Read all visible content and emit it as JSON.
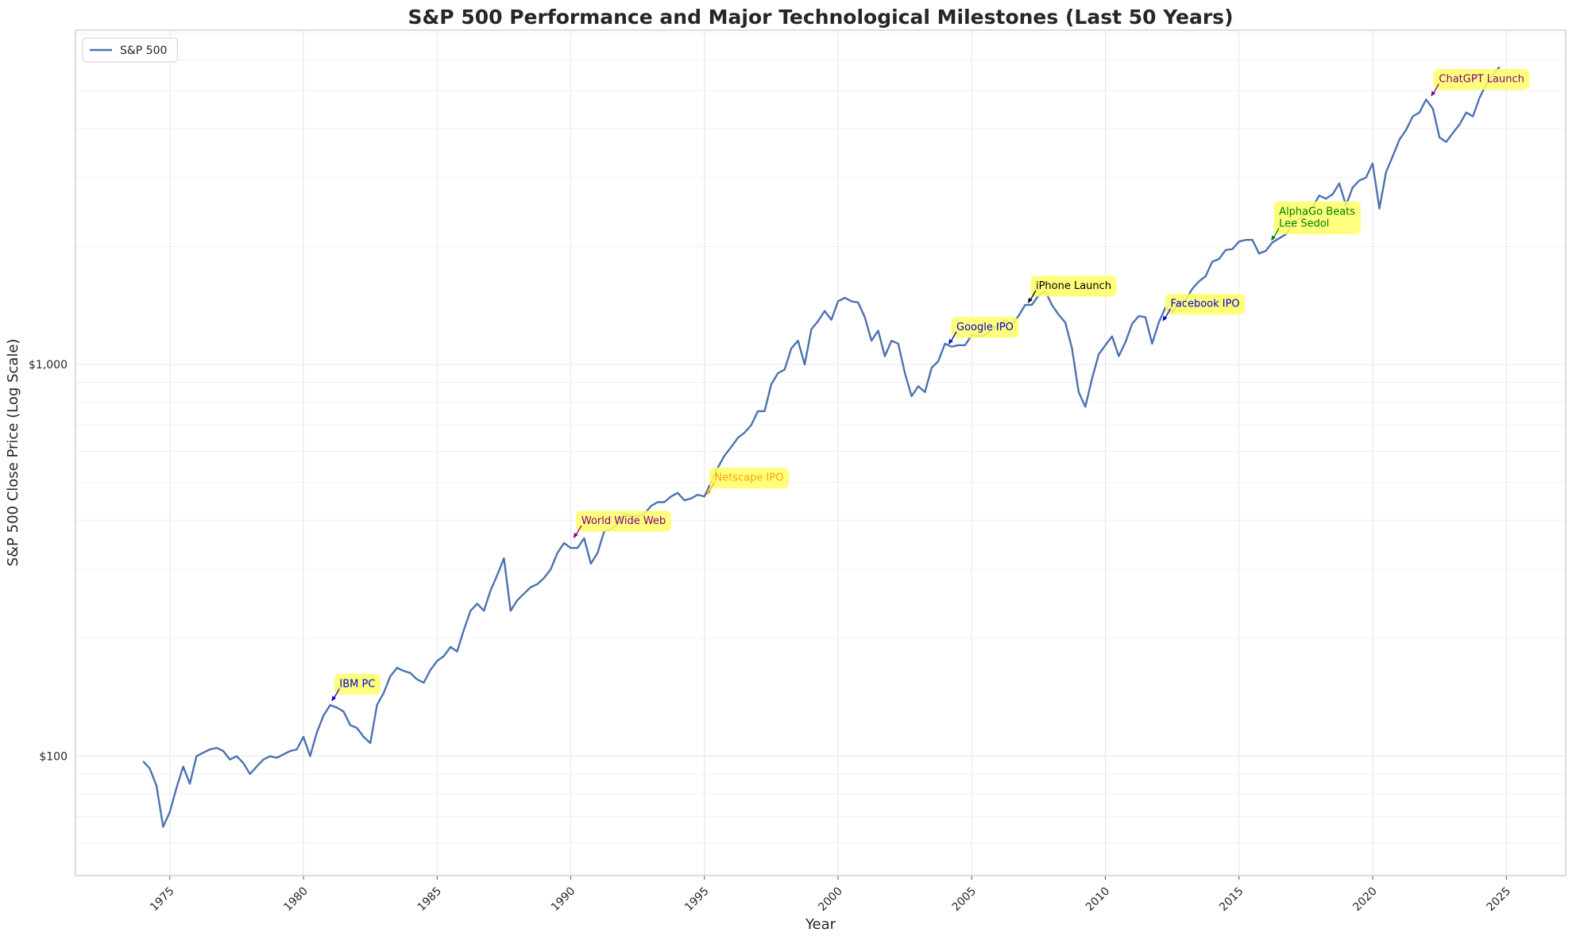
{
  "chart_data": {
    "type": "line",
    "title": "S&P 500 Performance and Major Technological Milestones (Last 50 Years)",
    "xlabel": "Year",
    "ylabel": "S&P 500 Close Price (Log Scale)",
    "log_y": true,
    "grid": true,
    "legend": "upper left",
    "xlim": [
      1971.47,
      2027.22
    ],
    "xticks": [
      1975,
      1980,
      1985,
      1990,
      1995,
      2000,
      2005,
      2010,
      2015,
      2020,
      2025
    ],
    "ylim": [
      49.5,
      7140
    ],
    "yticks": [
      {
        "value": 100,
        "label": "$100"
      },
      {
        "value": 1000,
        "label": "$1,000"
      }
    ],
    "y_minor_ticks": [
      50,
      60,
      70,
      80,
      90,
      200,
      300,
      400,
      500,
      600,
      700,
      800,
      900,
      2000,
      3000,
      4000,
      5000,
      6000,
      7000
    ],
    "x": [
      1974.0,
      1974.25,
      1974.5,
      1974.75,
      1975.0,
      1975.25,
      1975.5,
      1975.75,
      1976.0,
      1976.25,
      1976.5,
      1976.75,
      1977.0,
      1977.25,
      1977.5,
      1977.75,
      1978.0,
      1978.25,
      1978.5,
      1978.75,
      1979.0,
      1979.25,
      1979.5,
      1979.75,
      1980.0,
      1980.25,
      1980.5,
      1980.75,
      1981.0,
      1981.25,
      1981.5,
      1981.75,
      1982.0,
      1982.25,
      1982.5,
      1982.75,
      1983.0,
      1983.25,
      1983.5,
      1983.75,
      1984.0,
      1984.25,
      1984.5,
      1984.75,
      1985.0,
      1985.25,
      1985.5,
      1985.75,
      1986.0,
      1986.25,
      1986.5,
      1986.75,
      1987.0,
      1987.25,
      1987.5,
      1987.75,
      1988.0,
      1988.25,
      1988.5,
      1988.75,
      1989.0,
      1989.25,
      1989.5,
      1989.75,
      1990.0,
      1990.25,
      1990.5,
      1990.75,
      1991.0,
      1991.25,
      1991.5,
      1991.75,
      1992.0,
      1992.25,
      1992.5,
      1992.75,
      1993.0,
      1993.25,
      1993.5,
      1993.75,
      1994.0,
      1994.25,
      1994.5,
      1994.75,
      1995.0,
      1995.25,
      1995.5,
      1995.75,
      1996.0,
      1996.25,
      1996.5,
      1996.75,
      1997.0,
      1997.25,
      1997.5,
      1997.75,
      1998.0,
      1998.25,
      1998.5,
      1998.75,
      1999.0,
      1999.25,
      1999.5,
      1999.75,
      2000.0,
      2000.25,
      2000.5,
      2000.75,
      2001.0,
      2001.25,
      2001.5,
      2001.75,
      2002.0,
      2002.25,
      2002.5,
      2002.75,
      2003.0,
      2003.25,
      2003.5,
      2003.75,
      2004.0,
      2004.25,
      2004.5,
      2004.75,
      2005.0,
      2005.25,
      2005.5,
      2005.75,
      2006.0,
      2006.25,
      2006.5,
      2006.75,
      2007.0,
      2007.25,
      2007.5,
      2007.75,
      2008.0,
      2008.25,
      2008.5,
      2008.75,
      2009.0,
      2009.25,
      2009.5,
      2009.75,
      2010.0,
      2010.25,
      2010.5,
      2010.75,
      2011.0,
      2011.25,
      2011.5,
      2011.75,
      2012.0,
      2012.25,
      2012.5,
      2012.75,
      2013.0,
      2013.25,
      2013.5,
      2013.75,
      2014.0,
      2014.25,
      2014.5,
      2014.75,
      2015.0,
      2015.25,
      2015.5,
      2015.75,
      2016.0,
      2016.25,
      2016.5,
      2016.75,
      2017.0,
      2017.25,
      2017.5,
      2017.75,
      2018.0,
      2018.25,
      2018.5,
      2018.75,
      2019.0,
      2019.25,
      2019.5,
      2019.75,
      2020.0,
      2020.25,
      2020.5,
      2020.75,
      2021.0,
      2021.25,
      2021.5,
      2021.75,
      2022.0,
      2022.25,
      2022.5,
      2022.75,
      2023.0,
      2023.25,
      2023.5,
      2023.75,
      2024.0,
      2024.25,
      2024.5,
      2024.75
    ],
    "series": [
      {
        "name": "S&P 500",
        "color": "#4c72b0",
        "values": [
          97,
          93,
          84,
          66,
          72,
          83,
          94,
          85,
          100,
          102,
          104,
          105,
          103,
          98,
          100,
          96,
          90,
          94,
          98,
          100,
          99,
          101,
          103,
          104,
          112,
          100,
          115,
          127,
          135,
          133,
          130,
          120,
          118,
          112,
          108,
          135,
          145,
          160,
          168,
          165,
          163,
          157,
          154,
          166,
          175,
          180,
          190,
          185,
          210,
          235,
          245,
          235,
          265,
          290,
          320,
          235,
          250,
          260,
          270,
          275,
          285,
          300,
          330,
          350,
          340,
          340,
          360,
          310,
          330,
          375,
          380,
          390,
          415,
          410,
          410,
          415,
          435,
          445,
          445,
          460,
          470,
          450,
          455,
          465,
          460,
          500,
          545,
          585,
          615,
          650,
          670,
          700,
          760,
          760,
          890,
          950,
          970,
          1100,
          1150,
          1000,
          1230,
          1290,
          1370,
          1300,
          1450,
          1480,
          1450,
          1440,
          1320,
          1150,
          1220,
          1050,
          1150,
          1130,
          950,
          830,
          880,
          850,
          980,
          1020,
          1130,
          1110,
          1120,
          1120,
          1190,
          1180,
          1190,
          1230,
          1260,
          1300,
          1270,
          1330,
          1420,
          1420,
          1500,
          1540,
          1420,
          1340,
          1280,
          1100,
          850,
          780,
          920,
          1060,
          1120,
          1180,
          1050,
          1140,
          1270,
          1330,
          1320,
          1130,
          1280,
          1400,
          1360,
          1440,
          1460,
          1560,
          1630,
          1680,
          1830,
          1860,
          1960,
          1970,
          2060,
          2080,
          2080,
          1920,
          1950,
          2050,
          2100,
          2150,
          2270,
          2360,
          2420,
          2520,
          2700,
          2650,
          2720,
          2900,
          2550,
          2830,
          2950,
          3000,
          3260,
          2500,
          3100,
          3400,
          3750,
          3970,
          4300,
          4400,
          4750,
          4500,
          3800,
          3700,
          3900,
          4100,
          4400,
          4300,
          4800,
          5200,
          5500,
          5750
        ]
      }
    ],
    "annotations": [
      {
        "lines": [
          "IBM PC"
        ],
        "x": 1981.05,
        "y": 138,
        "color": "#0000cc"
      },
      {
        "lines": [
          "World Wide Web"
        ],
        "x": 1990.1,
        "y": 360,
        "color": "#800080"
      },
      {
        "lines": [
          "Netscape IPO"
        ],
        "x": 1995.08,
        "y": 464,
        "color": "#ffa500"
      },
      {
        "lines": [
          "Google IPO"
        ],
        "x": 2004.13,
        "y": 1125,
        "color": "#0000cc"
      },
      {
        "lines": [
          "iPhone Launch"
        ],
        "x": 2007.1,
        "y": 1434,
        "color": "#000000"
      },
      {
        "lines": [
          "Facebook IPO"
        ],
        "x": 2012.14,
        "y": 1289,
        "color": "#0000cc"
      },
      {
        "lines": [
          "AlphaGo Beats",
          "Lee Sedol"
        ],
        "x": 2016.2,
        "y": 2069,
        "color": "#008000"
      },
      {
        "lines": [
          "ChatGPT Launch"
        ],
        "x": 2022.18,
        "y": 4836,
        "color": "#800080"
      }
    ]
  }
}
